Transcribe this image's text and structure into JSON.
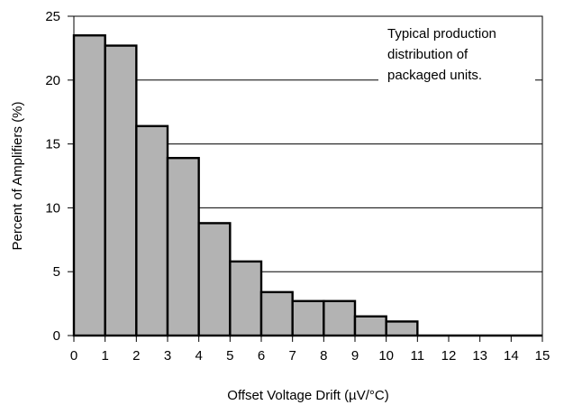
{
  "chart_data": {
    "type": "bar",
    "title": "",
    "xlabel": "Offset Voltage Drift (µV/°C)",
    "ylabel": "Percent of Amplifiers (%)",
    "bins": [
      {
        "x0": 0,
        "x1": 1,
        "value": 23.5
      },
      {
        "x0": 1,
        "x1": 2,
        "value": 22.7
      },
      {
        "x0": 2,
        "x1": 3,
        "value": 16.4
      },
      {
        "x0": 3,
        "x1": 4,
        "value": 13.9
      },
      {
        "x0": 4,
        "x1": 5,
        "value": 8.8
      },
      {
        "x0": 5,
        "x1": 6,
        "value": 5.8
      },
      {
        "x0": 6,
        "x1": 7,
        "value": 3.4
      },
      {
        "x0": 7,
        "x1": 8,
        "value": 2.7
      },
      {
        "x0": 8,
        "x1": 9,
        "value": 2.7
      },
      {
        "x0": 9,
        "x1": 10,
        "value": 1.5
      },
      {
        "x0": 10,
        "x1": 11,
        "value": 1.1
      },
      {
        "x0": 11,
        "x1": 12,
        "value": 0
      },
      {
        "x0": 12,
        "x1": 13,
        "value": 0
      },
      {
        "x0": 13,
        "x1": 14,
        "value": 0
      },
      {
        "x0": 14,
        "x1": 15,
        "value": 0
      }
    ],
    "xlim": [
      0,
      15
    ],
    "ylim": [
      0,
      25
    ],
    "xticks": [
      "0",
      "1",
      "2",
      "3",
      "4",
      "5",
      "6",
      "7",
      "8",
      "9",
      "10",
      "11",
      "12",
      "13",
      "14",
      "15"
    ],
    "yticks": [
      "0",
      "5",
      "10",
      "15",
      "20",
      "25"
    ],
    "grid": "horizontal",
    "bar_color": "#b3b3b3",
    "annotation": {
      "lines": [
        "Typical production",
        "distribution of",
        "packaged units."
      ]
    }
  }
}
